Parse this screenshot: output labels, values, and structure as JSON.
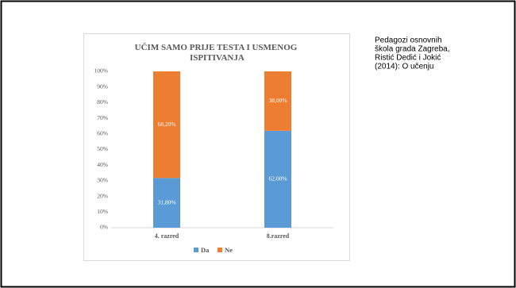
{
  "chart_data": {
    "type": "stacked-bar",
    "title": "UČIM SAMO PRIJE TESTA I USMENOG ISPITIVANJA",
    "categories": [
      "4. razred",
      "8.razred"
    ],
    "series": [
      {
        "name": "Da",
        "color": "#5b9bd5",
        "values": [
          31.8,
          62
        ],
        "value_labels": [
          "31,80%",
          "62,00%"
        ]
      },
      {
        "name": "Ne",
        "color": "#ed7d31",
        "values": [
          68.2,
          38
        ],
        "value_labels": [
          "68,20%",
          "38,00%"
        ]
      }
    ],
    "ylim": [
      0,
      100
    ],
    "yticks": [
      {
        "value": 0,
        "label": "0%"
      },
      {
        "value": 10,
        "label": "10%"
      },
      {
        "value": 20,
        "label": "20%"
      },
      {
        "value": 30,
        "label": "30%"
      },
      {
        "value": 40,
        "label": "40%"
      },
      {
        "value": 50,
        "label": "50%"
      },
      {
        "value": 60,
        "label": "60%"
      },
      {
        "value": 70,
        "label": "70%"
      },
      {
        "value": 80,
        "label": "80%"
      },
      {
        "value": 90,
        "label": "90%"
      },
      {
        "value": 100,
        "label": "100%"
      }
    ],
    "grid": false,
    "legend": "bottom"
  },
  "side_text": [
    "Pedagozi osnovnih",
    "škola grada Zagreba,",
    "Ristić Dedić i Jokić",
    "(2014): O učenju"
  ]
}
